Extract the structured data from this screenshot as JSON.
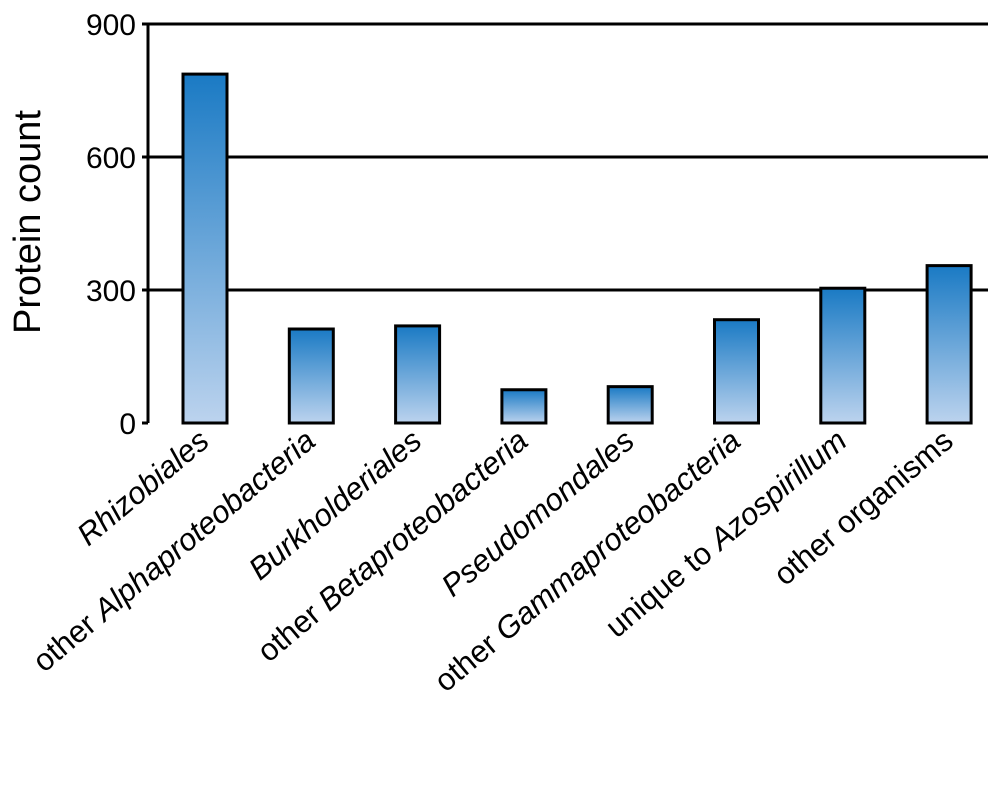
{
  "chart_data": {
    "type": "bar",
    "title": "",
    "xlabel": "",
    "ylabel": "Protein count",
    "ylim": [
      0,
      900
    ],
    "yticks": [
      0,
      300,
      600,
      900
    ],
    "grid": "horizontal",
    "categories": [
      [
        {
          "text": "Rhizobiales",
          "italic": true
        }
      ],
      [
        {
          "text": "other ",
          "italic": false
        },
        {
          "text": "Alphaproteobacteria",
          "italic": true
        }
      ],
      [
        {
          "text": "Burkholderiales",
          "italic": true
        }
      ],
      [
        {
          "text": "other ",
          "italic": false
        },
        {
          "text": "Betaproteobacteria",
          "italic": true
        }
      ],
      [
        {
          "text": "Pseudomondales",
          "italic": true
        }
      ],
      [
        {
          "text": "other ",
          "italic": false
        },
        {
          "text": "Gammaproteobacteria",
          "italic": true
        }
      ],
      [
        {
          "text": "unique to ",
          "italic": false
        },
        {
          "text": "Azospirillum",
          "italic": true
        }
      ],
      [
        {
          "text": "other organisms",
          "italic": false
        }
      ]
    ],
    "values": [
      787,
      212,
      219,
      75,
      82,
      233,
      304,
      355
    ],
    "colors": {
      "bar_top": "#1a7ac4",
      "bar_bottom": "#bcd3ee",
      "bar_outline": "#000000",
      "grid": "#000000"
    }
  }
}
